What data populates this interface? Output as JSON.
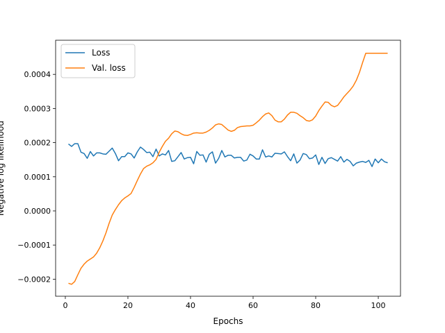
{
  "chart_data": {
    "type": "line",
    "xlabel": "Epochs",
    "ylabel": "Negative log likelihood",
    "xlim": [
      -3.1,
      107.1
    ],
    "ylim": [
      -0.00025,
      0.0005
    ],
    "xticks": [
      0,
      20,
      40,
      60,
      80,
      100
    ],
    "xtick_labels": [
      "0",
      "20",
      "40",
      "60",
      "80",
      "100"
    ],
    "yticks": [
      -0.0002,
      -0.0001,
      0.0,
      0.0001,
      0.0002,
      0.0003,
      0.0004
    ],
    "ytick_labels": [
      "−0.0002",
      "−0.0001",
      "0.0000",
      "0.0001",
      "0.0002",
      "0.0003",
      "0.0004"
    ],
    "grid": false,
    "legend_position": "top-left",
    "series": [
      {
        "name": "Loss",
        "color": "#1f77b4",
        "x": [
          1,
          2,
          3,
          4,
          5,
          6,
          7,
          8,
          9,
          10,
          11,
          12,
          13,
          14,
          15,
          16,
          17,
          18,
          19,
          20,
          21,
          22,
          23,
          24,
          25,
          26,
          27,
          28,
          29,
          30,
          31,
          32,
          33,
          34,
          35,
          36,
          37,
          38,
          39,
          40,
          41,
          42,
          43,
          44,
          45,
          46,
          47,
          48,
          49,
          50,
          51,
          52,
          53,
          54,
          55,
          56,
          57,
          58,
          59,
          60,
          61,
          62,
          63,
          64,
          65,
          66,
          67,
          68,
          69,
          70,
          71,
          72,
          73,
          74,
          75,
          76,
          77,
          78,
          79,
          80,
          81,
          82,
          83,
          84,
          85,
          86,
          87,
          88,
          89,
          90,
          91,
          92,
          93,
          94,
          95,
          96,
          97,
          98,
          99,
          100,
          101,
          102,
          103
        ],
        "y": [
          0.000196,
          0.000189,
          0.000197,
          0.000197,
          0.000172,
          0.000168,
          0.000154,
          0.000174,
          0.000161,
          0.00017,
          0.00017,
          0.000167,
          0.000166,
          0.000175,
          0.000184,
          0.000168,
          0.000147,
          0.000159,
          0.000159,
          0.00017,
          0.000167,
          0.000155,
          0.000173,
          0.000187,
          0.00018,
          0.000171,
          0.000172,
          0.000159,
          0.000181,
          0.000161,
          0.000167,
          0.000164,
          0.000177,
          0.000145,
          0.000147,
          0.000159,
          0.000171,
          0.000152,
          0.000156,
          0.000157,
          0.000138,
          0.000174,
          0.000163,
          0.000164,
          0.000143,
          0.000166,
          0.000173,
          0.00014,
          0.000154,
          0.000177,
          0.000158,
          0.000163,
          0.000163,
          0.000155,
          0.000157,
          0.000157,
          0.000146,
          0.000149,
          0.000166,
          0.000161,
          0.000152,
          0.000152,
          0.000179,
          0.000158,
          0.000161,
          0.000158,
          0.000169,
          0.000168,
          0.000167,
          0.000173,
          0.000159,
          0.000147,
          0.000167,
          0.00014,
          0.000149,
          0.000168,
          0.000165,
          0.000153,
          0.000155,
          0.000164,
          0.000136,
          0.000157,
          0.000139,
          0.000153,
          0.000156,
          0.000151,
          0.000146,
          0.000159,
          0.000143,
          0.000151,
          0.000145,
          0.000132,
          0.00014,
          0.000143,
          0.000145,
          0.000142,
          0.000148,
          0.00013,
          0.000152,
          0.000141,
          0.000152,
          0.000144,
          0.000141
        ]
      },
      {
        "name": "Val. loss",
        "color": "#ff7f0e",
        "x": [
          1,
          2,
          3,
          4,
          5,
          6,
          7,
          8,
          9,
          10,
          11,
          12,
          13,
          14,
          15,
          16,
          17,
          18,
          19,
          20,
          21,
          22,
          23,
          24,
          25,
          26,
          27,
          28,
          29,
          30,
          31,
          32,
          33,
          34,
          35,
          36,
          37,
          38,
          39,
          40,
          41,
          42,
          43,
          44,
          45,
          46,
          47,
          48,
          49,
          50,
          51,
          52,
          53,
          54,
          55,
          56,
          57,
          58,
          59,
          60,
          61,
          62,
          63,
          64,
          65,
          66,
          67,
          68,
          69,
          70,
          71,
          72,
          73,
          74,
          75,
          76,
          77,
          78,
          79,
          80,
          81,
          82,
          83,
          84,
          85,
          86,
          87,
          88,
          89,
          90,
          91,
          92,
          93,
          94,
          95,
          96,
          97,
          98,
          99,
          100,
          101,
          102,
          103
        ],
        "y": [
          -0.000212,
          -0.000215,
          -0.000207,
          -0.000187,
          -0.000168,
          -0.000156,
          -0.000147,
          -0.000141,
          -0.000135,
          -0.000124,
          -0.000108,
          -8.8e-05,
          -6.4e-05,
          -3.6e-05,
          -1.2e-05,
          4e-06,
          1.8e-05,
          3e-05,
          3.8e-05,
          4.4e-05,
          5.1e-05,
          6.9e-05,
          8.9e-05,
          0.000108,
          0.000124,
          0.000131,
          0.000135,
          0.000141,
          0.000151,
          0.000172,
          0.000189,
          0.000204,
          0.000213,
          0.000226,
          0.000234,
          0.000232,
          0.000226,
          0.000222,
          0.000221,
          0.000224,
          0.000228,
          0.000229,
          0.000228,
          0.000228,
          0.000231,
          0.000236,
          0.000243,
          0.000252,
          0.000255,
          0.000253,
          0.000245,
          0.000237,
          0.000233,
          0.000236,
          0.000244,
          0.000247,
          0.000248,
          0.000249,
          0.000249,
          0.000251,
          0.000258,
          0.000266,
          0.000276,
          0.000284,
          0.000287,
          0.000279,
          0.000266,
          0.000261,
          0.000261,
          0.000269,
          0.000281,
          0.000289,
          0.000289,
          0.000286,
          0.000279,
          0.000273,
          0.000265,
          0.000263,
          0.000267,
          0.000278,
          0.000294,
          0.000307,
          0.000319,
          0.000318,
          0.000309,
          0.000305,
          0.000309,
          0.000321,
          0.000334,
          0.000344,
          0.000354,
          0.000366,
          0.000383,
          0.000406,
          0.000435,
          0.000462,
          0.000462,
          0.000462,
          0.000462,
          0.000462,
          0.000462,
          0.000462,
          0.000462
        ]
      }
    ]
  }
}
